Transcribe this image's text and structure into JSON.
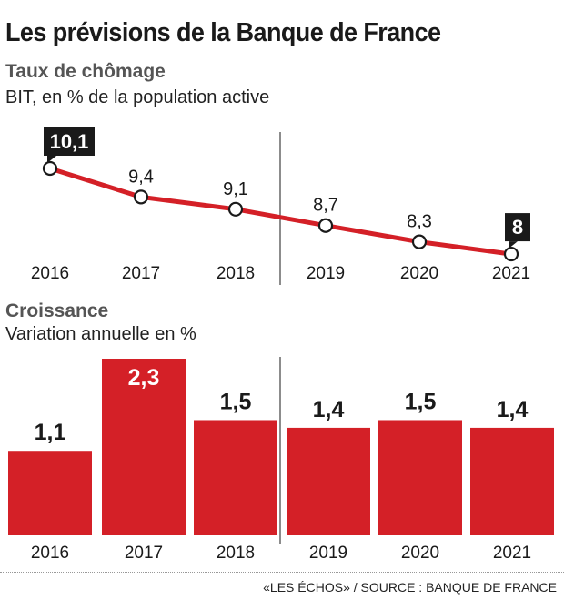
{
  "title": "Les prévisions de la Banque de France",
  "source": "«LES ÉCHOS» / SOURCE : BANQUE DE FRANCE",
  "colors": {
    "accent": "#d42027",
    "text": "#1a1a1a",
    "subtitle": "#555555"
  },
  "chart_data": [
    {
      "type": "line",
      "title": "Taux de chômage",
      "subtitle": "BIT, en % de la population active",
      "categories": [
        "2016",
        "2017",
        "2018",
        "2019",
        "2020",
        "2021"
      ],
      "values": [
        10.1,
        9.4,
        9.1,
        8.7,
        8.3,
        8.0
      ],
      "data_labels": [
        "10,1",
        "9,4",
        "9,1",
        "8,7",
        "8,3",
        "8"
      ],
      "highlighted_labels": [
        "2016",
        "2021"
      ],
      "forecast_from": "2019",
      "grid": false
    },
    {
      "type": "bar",
      "title": "Croissance",
      "subtitle": "Variation annuelle en %",
      "categories": [
        "2016",
        "2017",
        "2018",
        "2019",
        "2020",
        "2021"
      ],
      "values": [
        1.1,
        2.3,
        1.5,
        1.4,
        1.5,
        1.4
      ],
      "data_labels": [
        "1,1",
        "2,3",
        "1,5",
        "1,4",
        "1,5",
        "1,4"
      ],
      "label_inside_bar": [
        "2017"
      ],
      "forecast_from": "2019",
      "grid": false
    }
  ]
}
